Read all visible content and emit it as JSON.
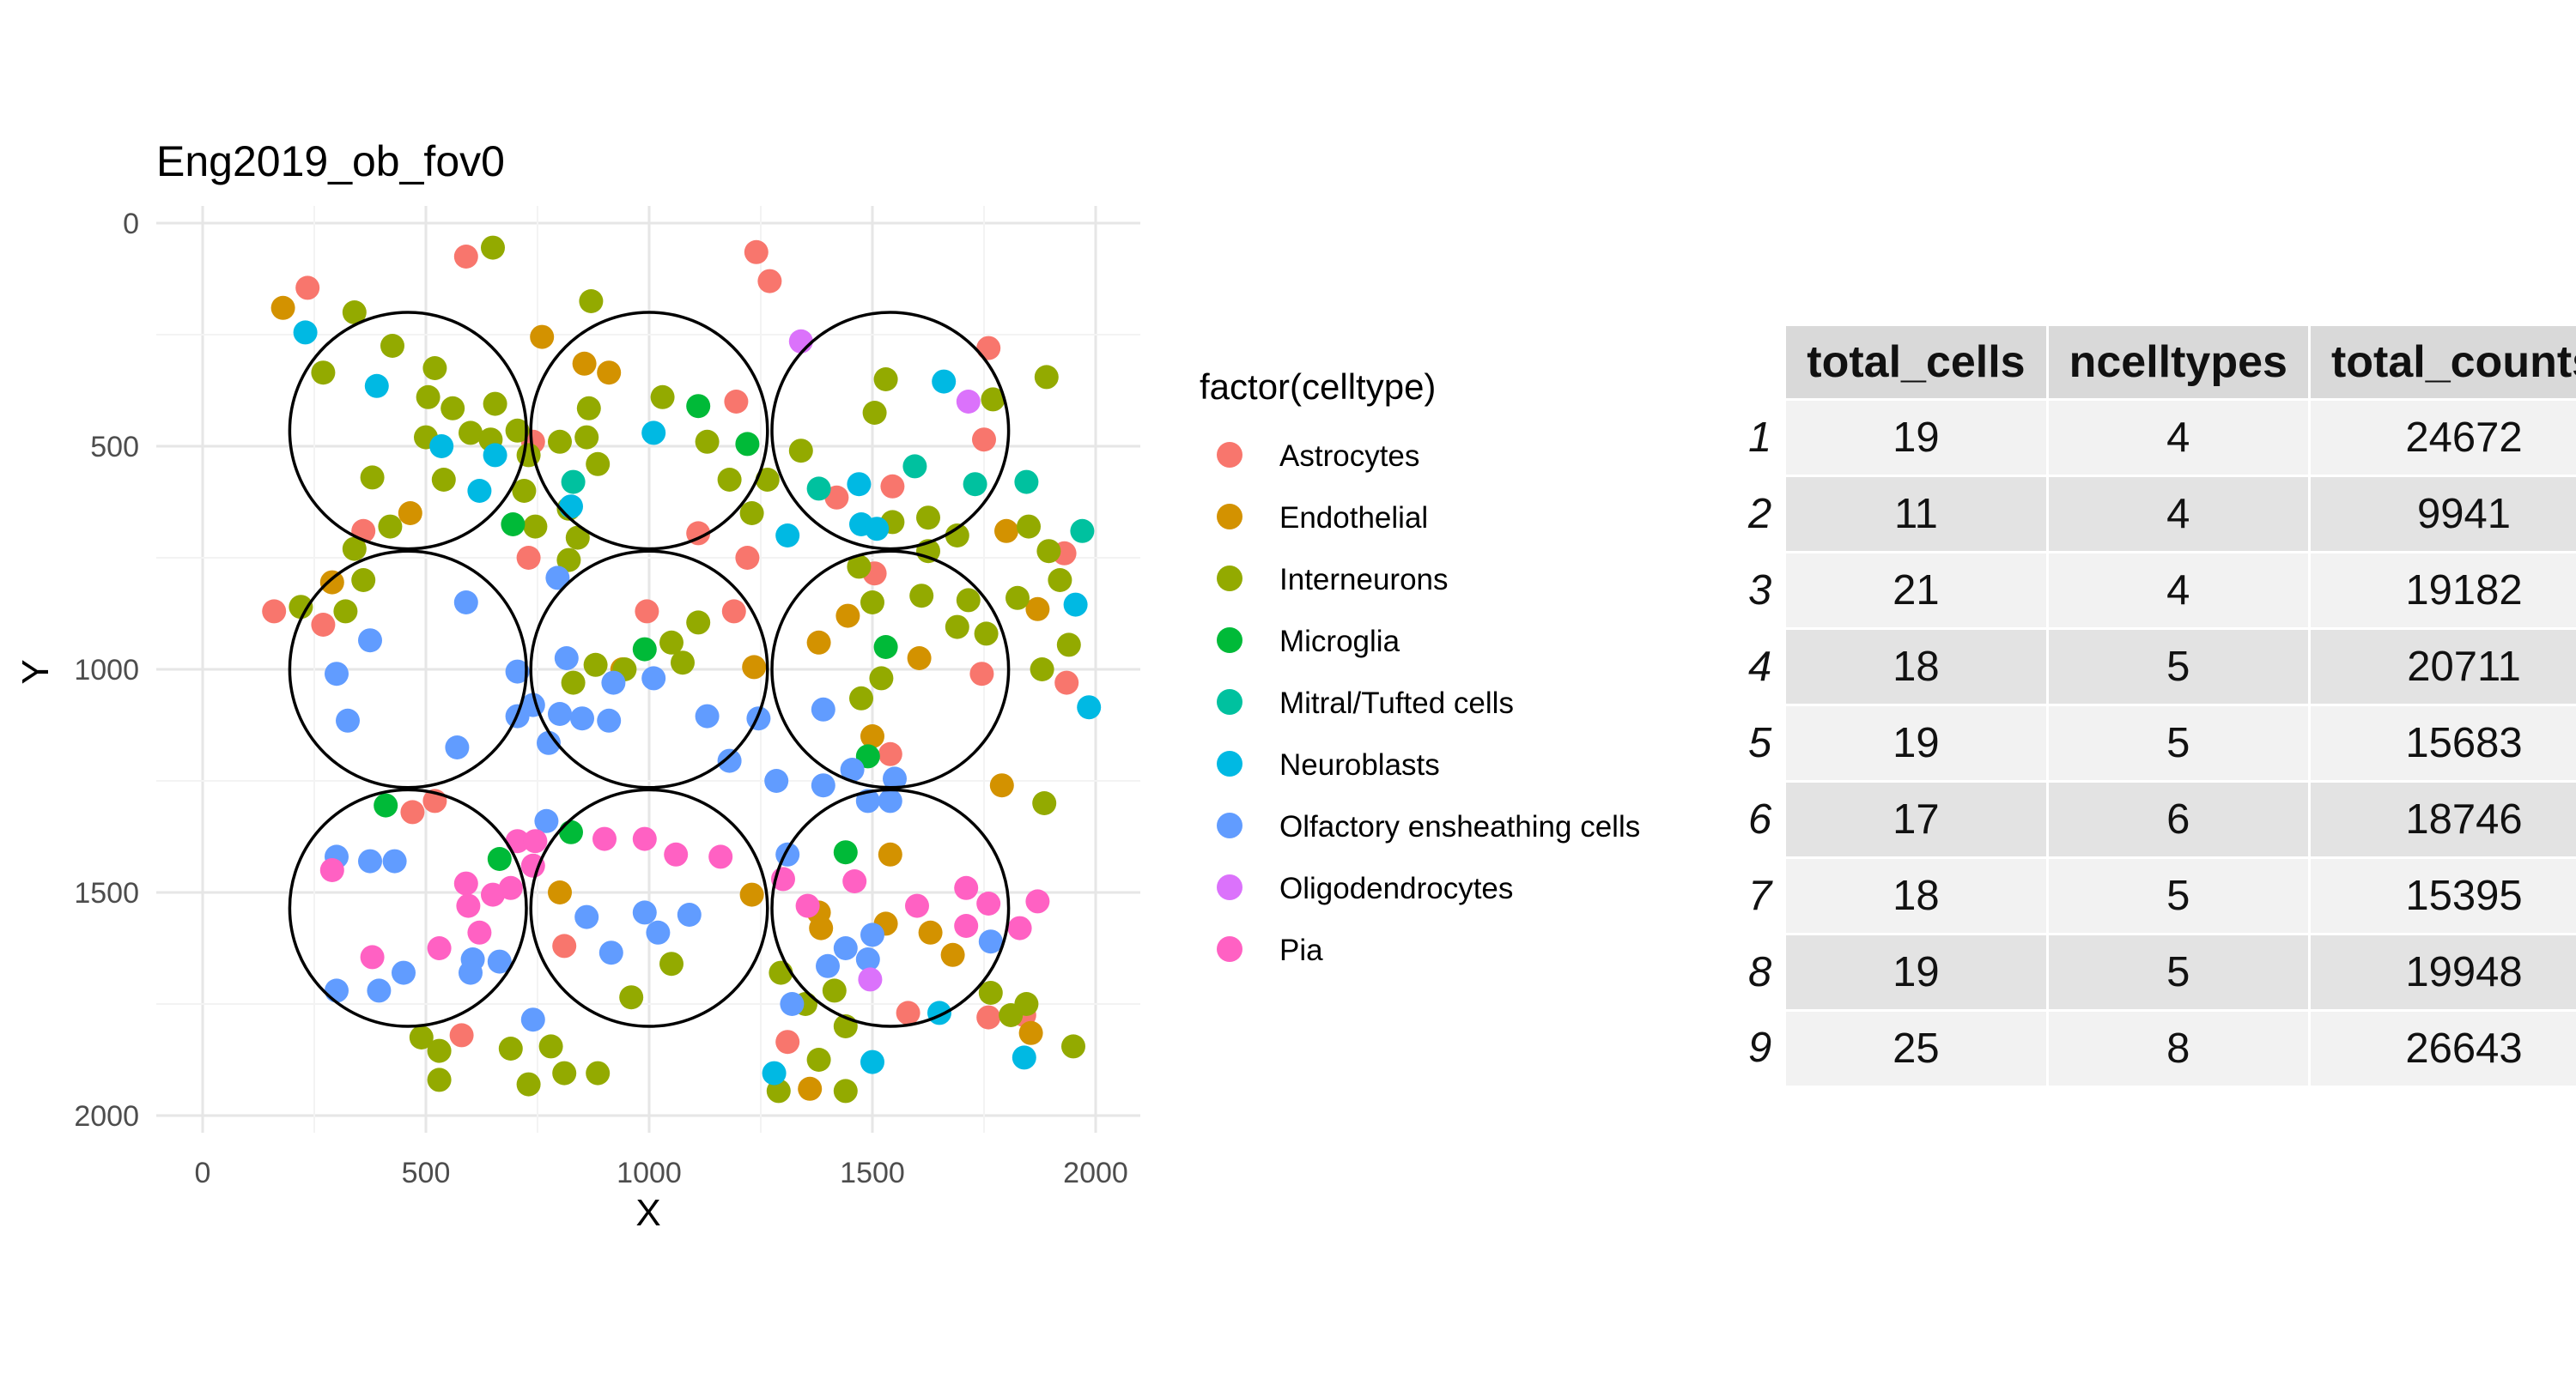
{
  "chart_data": {
    "type": "scatter",
    "title": "Eng2019_ob_fov0",
    "xlabel": "X",
    "ylabel": "Y",
    "xlim": [
      -100,
      2100
    ],
    "ylim": [
      2000,
      0
    ],
    "y_reversed": true,
    "x_ticks": [
      0,
      500,
      1000,
      1500,
      2000
    ],
    "y_ticks": [
      0,
      500,
      1000,
      1500,
      2000
    ],
    "grid": true,
    "legend_title": "factor(celltype)",
    "legend_position": "right",
    "categories": [
      {
        "name": "Astrocytes",
        "color": "#F8766D"
      },
      {
        "name": "Endothelial",
        "color": "#D39200"
      },
      {
        "name": "Interneurons",
        "color": "#93AA00"
      },
      {
        "name": "Microglia",
        "color": "#00BA38"
      },
      {
        "name": "Mitral/Tufted cells",
        "color": "#00C19F"
      },
      {
        "name": "Neuroblasts",
        "color": "#00B9E3"
      },
      {
        "name": "Olfactory ensheathing cells",
        "color": "#619CFF"
      },
      {
        "name": "Oligodendrocytes",
        "color": "#DB72FB"
      },
      {
        "name": "Pia",
        "color": "#FF61C3"
      }
    ],
    "circles": [
      {
        "cx": 460,
        "cy": 465,
        "r": 265
      },
      {
        "cx": 1000,
        "cy": 465,
        "r": 265
      },
      {
        "cx": 1540,
        "cy": 465,
        "r": 265
      },
      {
        "cx": 460,
        "cy": 1000,
        "r": 265
      },
      {
        "cx": 1000,
        "cy": 1000,
        "r": 265
      },
      {
        "cx": 1540,
        "cy": 1000,
        "r": 265
      },
      {
        "cx": 460,
        "cy": 1535,
        "r": 265
      },
      {
        "cx": 1000,
        "cy": 1535,
        "r": 265
      },
      {
        "cx": 1540,
        "cy": 1535,
        "r": 265
      }
    ],
    "points": [
      [
        235,
        145,
        0
      ],
      [
        590,
        75,
        0
      ],
      [
        1240,
        65,
        0
      ],
      [
        1270,
        130,
        0
      ],
      [
        1760,
        280,
        0
      ],
      [
        740,
        490,
        0
      ],
      [
        1195,
        400,
        0
      ],
      [
        1750,
        485,
        0
      ],
      [
        360,
        690,
        0
      ],
      [
        1420,
        615,
        0
      ],
      [
        1545,
        590,
        0
      ],
      [
        1110,
        695,
        0
      ],
      [
        1220,
        750,
        0
      ],
      [
        730,
        750,
        0
      ],
      [
        1505,
        785,
        0
      ],
      [
        160,
        870,
        0
      ],
      [
        270,
        900,
        0
      ],
      [
        995,
        870,
        0
      ],
      [
        1190,
        870,
        0
      ],
      [
        1930,
        740,
        0
      ],
      [
        1935,
        1030,
        0
      ],
      [
        1745,
        1010,
        0
      ],
      [
        1540,
        1190,
        0
      ],
      [
        470,
        1320,
        0
      ],
      [
        520,
        1295,
        0
      ],
      [
        580,
        1820,
        0
      ],
      [
        810,
        1620,
        0
      ],
      [
        1310,
        1835,
        0
      ],
      [
        1580,
        1770,
        0
      ],
      [
        1760,
        1780,
        0
      ],
      [
        1840,
        1775,
        0
      ],
      [
        180,
        190,
        1
      ],
      [
        760,
        255,
        1
      ],
      [
        855,
        315,
        1
      ],
      [
        910,
        335,
        1
      ],
      [
        465,
        650,
        1
      ],
      [
        290,
        805,
        1
      ],
      [
        1800,
        690,
        1
      ],
      [
        1870,
        865,
        1
      ],
      [
        1380,
        940,
        1
      ],
      [
        1445,
        880,
        1
      ],
      [
        1605,
        975,
        1
      ],
      [
        940,
        1000,
        1
      ],
      [
        1235,
        995,
        1
      ],
      [
        1500,
        1150,
        1
      ],
      [
        1790,
        1260,
        1
      ],
      [
        800,
        1500,
        1
      ],
      [
        1230,
        1505,
        1
      ],
      [
        1380,
        1545,
        1
      ],
      [
        1385,
        1580,
        1
      ],
      [
        1530,
        1570,
        1
      ],
      [
        1540,
        1415,
        1
      ],
      [
        1630,
        1590,
        1
      ],
      [
        1680,
        1640,
        1
      ],
      [
        1855,
        1815,
        1
      ],
      [
        1360,
        1940,
        1
      ],
      [
        650,
        55,
        2
      ],
      [
        870,
        175,
        2
      ],
      [
        340,
        200,
        2
      ],
      [
        270,
        335,
        2
      ],
      [
        425,
        275,
        2
      ],
      [
        520,
        325,
        2
      ],
      [
        505,
        390,
        2
      ],
      [
        560,
        415,
        2
      ],
      [
        655,
        405,
        2
      ],
      [
        1030,
        390,
        2
      ],
      [
        1530,
        350,
        2
      ],
      [
        1770,
        395,
        2
      ],
      [
        1890,
        345,
        2
      ],
      [
        500,
        480,
        2
      ],
      [
        600,
        470,
        2
      ],
      [
        645,
        485,
        2
      ],
      [
        705,
        465,
        2
      ],
      [
        730,
        520,
        2
      ],
      [
        720,
        600,
        2
      ],
      [
        860,
        480,
        2
      ],
      [
        865,
        415,
        2
      ],
      [
        885,
        540,
        2
      ],
      [
        800,
        490,
        2
      ],
      [
        1130,
        490,
        2
      ],
      [
        1340,
        510,
        2
      ],
      [
        1505,
        425,
        2
      ],
      [
        380,
        570,
        2
      ],
      [
        540,
        575,
        2
      ],
      [
        420,
        680,
        2
      ],
      [
        745,
        680,
        2
      ],
      [
        820,
        640,
        2
      ],
      [
        840,
        705,
        2
      ],
      [
        820,
        755,
        2
      ],
      [
        1180,
        575,
        2
      ],
      [
        1265,
        575,
        2
      ],
      [
        1230,
        650,
        2
      ],
      [
        1545,
        670,
        2
      ],
      [
        1625,
        660,
        2
      ],
      [
        1625,
        735,
        2
      ],
      [
        1690,
        700,
        2
      ],
      [
        1850,
        680,
        2
      ],
      [
        1895,
        735,
        2
      ],
      [
        1920,
        800,
        2
      ],
      [
        1470,
        770,
        2
      ],
      [
        1610,
        835,
        2
      ],
      [
        1500,
        850,
        2
      ],
      [
        1715,
        845,
        2
      ],
      [
        1825,
        840,
        2
      ],
      [
        1690,
        905,
        2
      ],
      [
        1755,
        920,
        2
      ],
      [
        1940,
        945,
        2
      ],
      [
        1880,
        1000,
        2
      ],
      [
        360,
        800,
        2
      ],
      [
        340,
        730,
        2
      ],
      [
        220,
        860,
        2
      ],
      [
        320,
        870,
        2
      ],
      [
        830,
        1030,
        2
      ],
      [
        880,
        990,
        2
      ],
      [
        945,
        1000,
        2
      ],
      [
        1050,
        940,
        2
      ],
      [
        1075,
        985,
        2
      ],
      [
        1110,
        895,
        2
      ],
      [
        1520,
        1020,
        2
      ],
      [
        1475,
        1065,
        2
      ],
      [
        1885,
        1300,
        2
      ],
      [
        1295,
        1680,
        2
      ],
      [
        1350,
        1750,
        2
      ],
      [
        1415,
        1720,
        2
      ],
      [
        1380,
        1875,
        2
      ],
      [
        1440,
        1800,
        2
      ],
      [
        1290,
        1945,
        2
      ],
      [
        1440,
        1945,
        2
      ],
      [
        1765,
        1725,
        2
      ],
      [
        1810,
        1775,
        2
      ],
      [
        1845,
        1750,
        2
      ],
      [
        1950,
        1845,
        2
      ],
      [
        490,
        1825,
        2
      ],
      [
        530,
        1855,
        2
      ],
      [
        530,
        1920,
        2
      ],
      [
        690,
        1850,
        2
      ],
      [
        730,
        1930,
        2
      ],
      [
        780,
        1845,
        2
      ],
      [
        810,
        1905,
        2
      ],
      [
        885,
        1905,
        2
      ],
      [
        960,
        1735,
        2
      ],
      [
        1050,
        1660,
        2
      ],
      [
        1110,
        410,
        3
      ],
      [
        1220,
        495,
        3
      ],
      [
        695,
        675,
        3
      ],
      [
        990,
        955,
        3
      ],
      [
        1530,
        950,
        3
      ],
      [
        1490,
        1195,
        3
      ],
      [
        410,
        1305,
        3
      ],
      [
        665,
        1425,
        3
      ],
      [
        825,
        1365,
        3
      ],
      [
        1440,
        1410,
        3
      ],
      [
        1595,
        545,
        4
      ],
      [
        1730,
        585,
        4
      ],
      [
        1845,
        580,
        4
      ],
      [
        1970,
        690,
        4
      ],
      [
        1380,
        595,
        4
      ],
      [
        830,
        580,
        4
      ],
      [
        230,
        245,
        5
      ],
      [
        390,
        365,
        5
      ],
      [
        535,
        500,
        5
      ],
      [
        655,
        520,
        5
      ],
      [
        620,
        600,
        5
      ],
      [
        825,
        635,
        5
      ],
      [
        1010,
        470,
        5
      ],
      [
        1310,
        700,
        5
      ],
      [
        1475,
        675,
        5
      ],
      [
        1510,
        685,
        5
      ],
      [
        1470,
        585,
        5
      ],
      [
        1660,
        355,
        5
      ],
      [
        1955,
        855,
        5
      ],
      [
        1985,
        1085,
        5
      ],
      [
        1280,
        1905,
        5
      ],
      [
        1500,
        1880,
        5
      ],
      [
        1650,
        1770,
        5
      ],
      [
        1840,
        1870,
        5
      ],
      [
        300,
        1010,
        6
      ],
      [
        325,
        1115,
        6
      ],
      [
        375,
        935,
        6
      ],
      [
        590,
        850,
        6
      ],
      [
        570,
        1175,
        6
      ],
      [
        705,
        1005,
        6
      ],
      [
        705,
        1105,
        6
      ],
      [
        740,
        1080,
        6
      ],
      [
        800,
        1100,
        6
      ],
      [
        775,
        1165,
        6
      ],
      [
        795,
        795,
        6
      ],
      [
        815,
        975,
        6
      ],
      [
        850,
        1110,
        6
      ],
      [
        920,
        1030,
        6
      ],
      [
        910,
        1115,
        6
      ],
      [
        1010,
        1020,
        6
      ],
      [
        1130,
        1105,
        6
      ],
      [
        1180,
        1205,
        6
      ],
      [
        1245,
        1110,
        6
      ],
      [
        1285,
        1250,
        6
      ],
      [
        1390,
        1090,
        6
      ],
      [
        1390,
        1260,
        6
      ],
      [
        1455,
        1225,
        6
      ],
      [
        1550,
        1245,
        6
      ],
      [
        1540,
        1295,
        6
      ],
      [
        1490,
        1295,
        6
      ],
      [
        1310,
        1415,
        6
      ],
      [
        1320,
        1750,
        6
      ],
      [
        1440,
        1625,
        6
      ],
      [
        1400,
        1665,
        6
      ],
      [
        1490,
        1650,
        6
      ],
      [
        1500,
        1595,
        6
      ],
      [
        1765,
        1610,
        6
      ],
      [
        300,
        1420,
        6
      ],
      [
        375,
        1430,
        6
      ],
      [
        430,
        1430,
        6
      ],
      [
        605,
        1650,
        6
      ],
      [
        600,
        1680,
        6
      ],
      [
        665,
        1655,
        6
      ],
      [
        450,
        1680,
        6
      ],
      [
        300,
        1720,
        6
      ],
      [
        395,
        1720,
        6
      ],
      [
        740,
        1785,
        6
      ],
      [
        770,
        1340,
        6
      ],
      [
        860,
        1555,
        6
      ],
      [
        915,
        1635,
        6
      ],
      [
        990,
        1545,
        6
      ],
      [
        1020,
        1590,
        6
      ],
      [
        1090,
        1550,
        6
      ],
      [
        1340,
        265,
        7
      ],
      [
        1715,
        400,
        7
      ],
      [
        1495,
        1695,
        7
      ],
      [
        290,
        1450,
        8
      ],
      [
        380,
        1645,
        8
      ],
      [
        530,
        1625,
        8
      ],
      [
        590,
        1480,
        8
      ],
      [
        595,
        1530,
        8
      ],
      [
        620,
        1590,
        8
      ],
      [
        650,
        1505,
        8
      ],
      [
        690,
        1490,
        8
      ],
      [
        705,
        1385,
        8
      ],
      [
        745,
        1385,
        8
      ],
      [
        740,
        1440,
        8
      ],
      [
        900,
        1380,
        8
      ],
      [
        990,
        1380,
        8
      ],
      [
        1060,
        1415,
        8
      ],
      [
        1160,
        1420,
        8
      ],
      [
        1300,
        1470,
        8
      ],
      [
        1460,
        1475,
        8
      ],
      [
        1600,
        1530,
        8
      ],
      [
        1710,
        1490,
        8
      ],
      [
        1710,
        1575,
        8
      ],
      [
        1760,
        1525,
        8
      ],
      [
        1830,
        1580,
        8
      ],
      [
        1870,
        1520,
        8
      ],
      [
        1355,
        1530,
        8
      ]
    ]
  },
  "table": {
    "headers": [
      "total_cells",
      "ncelltypes",
      "total_counts"
    ],
    "rows": [
      {
        "index": "1",
        "total_cells": "19",
        "ncelltypes": "4",
        "total_counts": "24672"
      },
      {
        "index": "2",
        "total_cells": "11",
        "ncelltypes": "4",
        "total_counts": "9941"
      },
      {
        "index": "3",
        "total_cells": "21",
        "ncelltypes": "4",
        "total_counts": "19182"
      },
      {
        "index": "4",
        "total_cells": "18",
        "ncelltypes": "5",
        "total_counts": "20711"
      },
      {
        "index": "5",
        "total_cells": "19",
        "ncelltypes": "5",
        "total_counts": "15683"
      },
      {
        "index": "6",
        "total_cells": "17",
        "ncelltypes": "6",
        "total_counts": "18746"
      },
      {
        "index": "7",
        "total_cells": "18",
        "ncelltypes": "5",
        "total_counts": "15395"
      },
      {
        "index": "8",
        "total_cells": "19",
        "ncelltypes": "5",
        "total_counts": "19948"
      },
      {
        "index": "9",
        "total_cells": "25",
        "ncelltypes": "8",
        "total_counts": "26643"
      }
    ]
  }
}
